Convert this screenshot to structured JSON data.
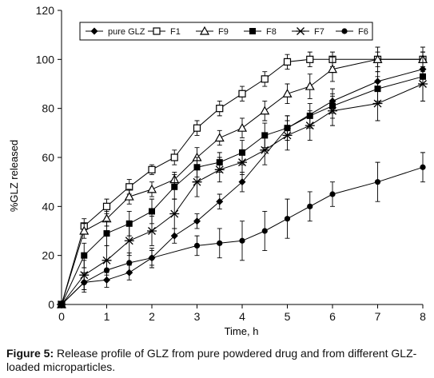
{
  "chart_data": {
    "type": "line",
    "title": "",
    "xlabel": "Time, h",
    "ylabel": "%GLZ released",
    "xlim": [
      0,
      8
    ],
    "ylim": [
      0,
      120
    ],
    "xticks": [
      0,
      1,
      2,
      3,
      4,
      5,
      6,
      7,
      8
    ],
    "yticks": [
      0,
      20,
      40,
      60,
      80,
      100,
      120
    ],
    "grid": false,
    "legend_position": "top, single row inside plot",
    "series": [
      {
        "name": "pure GLZ",
        "marker": "diamond-filled",
        "x": [
          0,
          0.5,
          1,
          1.5,
          2,
          2.5,
          3,
          3.5,
          4,
          5,
          6,
          7,
          8
        ],
        "y": [
          0,
          9,
          10,
          13,
          19,
          28,
          34,
          42,
          50,
          72,
          83,
          91,
          96
        ],
        "err": [
          0,
          3,
          3,
          3,
          3,
          3,
          3,
          3,
          4,
          5,
          5,
          4,
          3
        ]
      },
      {
        "name": "F1",
        "marker": "square-open",
        "x": [
          0,
          0.5,
          1,
          1.5,
          2,
          2.5,
          3,
          3.5,
          4,
          4.5,
          5,
          5.5,
          6,
          7,
          8
        ],
        "y": [
          0,
          32,
          40,
          48,
          55,
          60,
          72,
          80,
          86,
          92,
          99,
          100,
          100,
          100,
          100
        ],
        "err": [
          0,
          3,
          3,
          3,
          2,
          3,
          3,
          3,
          3,
          3,
          3,
          3,
          3,
          3,
          3
        ]
      },
      {
        "name": "F9",
        "marker": "triangle-open",
        "x": [
          0,
          0.5,
          1,
          1.5,
          2,
          2.5,
          3,
          3.5,
          4,
          4.5,
          5,
          5.5,
          6,
          7,
          8
        ],
        "y": [
          0,
          30,
          35,
          44,
          47,
          51,
          60,
          68,
          72,
          79,
          86,
          89,
          96,
          100,
          100
        ],
        "err": [
          0,
          3,
          3,
          3,
          3,
          3,
          4,
          3,
          4,
          4,
          4,
          5,
          5,
          5,
          5
        ]
      },
      {
        "name": "F8",
        "marker": "square-filled",
        "x": [
          0,
          0.5,
          1,
          1.5,
          2,
          2.5,
          3,
          3.5,
          4,
          4.5,
          5,
          5.5,
          6,
          7,
          8
        ],
        "y": [
          0,
          20,
          29,
          33,
          38,
          48,
          56,
          58,
          62,
          69,
          72,
          77,
          81,
          88,
          93
        ],
        "err": [
          0,
          5,
          5,
          5,
          5,
          5,
          4,
          4,
          5,
          5,
          5,
          5,
          5,
          5,
          10
        ]
      },
      {
        "name": "F7",
        "marker": "asterisk",
        "x": [
          0,
          0.5,
          1,
          1.5,
          2,
          2.5,
          3,
          3.5,
          4,
          4.5,
          5,
          5.5,
          6,
          7,
          8
        ],
        "y": [
          0,
          12,
          18,
          26,
          30,
          37,
          50,
          55,
          58,
          63,
          69,
          73,
          79,
          82,
          90
        ],
        "err": [
          0,
          6,
          6,
          6,
          6,
          6,
          6,
          5,
          5,
          6,
          6,
          6,
          6,
          7,
          7
        ]
      },
      {
        "name": "F6",
        "marker": "circle-filled",
        "x": [
          0,
          0.5,
          1,
          1.5,
          2,
          3,
          3.5,
          4,
          4.5,
          5,
          5.5,
          6,
          7,
          8
        ],
        "y": [
          0,
          9,
          14,
          17,
          19,
          24,
          25,
          26,
          30,
          35,
          40,
          45,
          50,
          56
        ],
        "err": [
          0,
          4,
          4,
          4,
          4,
          4,
          6,
          8,
          8,
          8,
          6,
          5,
          8,
          6
        ]
      }
    ]
  },
  "caption": {
    "label": "Figure 5:",
    "text": " Release profile of GLZ from pure powdered drug and from different GLZ-loaded microparticles."
  }
}
